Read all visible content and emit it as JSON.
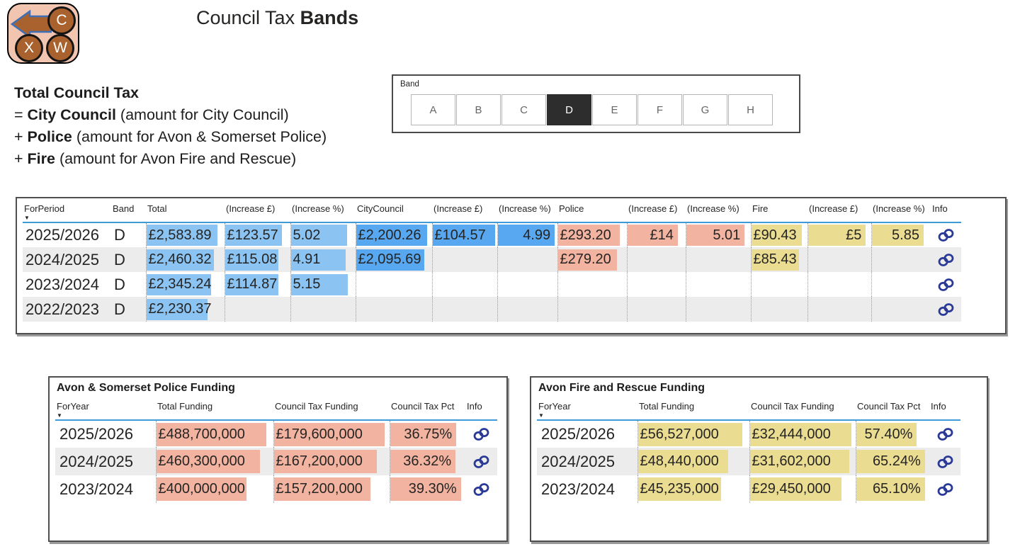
{
  "header": {
    "title_regular": "Council Tax ",
    "title_bold": "Bands",
    "nav_circles": [
      "C",
      "X",
      "W"
    ]
  },
  "formula": {
    "title": "Total Council Tax",
    "lines": [
      {
        "prefix": "= ",
        "bold": "City Council",
        "rest": " (amount for City Council)"
      },
      {
        "prefix": "+ ",
        "bold": "Police",
        "rest": " (amount for Avon & Somerset Police)"
      },
      {
        "prefix": "+ ",
        "bold": "Fire",
        "rest": " (amount for Avon Fire and Rescue)"
      }
    ]
  },
  "band_slicer": {
    "label": "Band",
    "options": [
      "A",
      "B",
      "C",
      "D",
      "E",
      "F",
      "G",
      "H"
    ],
    "selected": "D"
  },
  "main_table": {
    "headers": [
      "ForPeriod",
      "Band",
      "Total",
      "(Increase £)",
      "(Increase %)",
      "CityCouncil",
      "(Increase £)",
      "(Increase %)",
      "Police",
      "(Increase £)",
      "(Increase %)",
      "Fire",
      "(Increase £)",
      "(Increase %)",
      "Info"
    ],
    "rows": [
      {
        "period": "2025/2026",
        "band": "D",
        "total": {
          "t": "£2,583.89",
          "w": 91,
          "c": "lblue",
          "a": "l"
        },
        "total_inc": {
          "t": "£123.57",
          "w": 88,
          "c": "lblue",
          "a": "l"
        },
        "total_pct": {
          "t": "5.02",
          "w": 87,
          "c": "lblue",
          "a": "l"
        },
        "city": {
          "t": "£2,200.26",
          "w": 94,
          "c": "mblue",
          "a": "l"
        },
        "city_inc": {
          "t": "£104.57",
          "w": 97,
          "c": "mblue",
          "a": "l"
        },
        "city_pct": {
          "t": "4.99",
          "w": 96,
          "c": "mblue",
          "a": "r"
        },
        "police": {
          "t": "£293.20",
          "w": 90,
          "c": "salmon",
          "a": "l"
        },
        "police_inc": {
          "t": "£14",
          "w": 87,
          "c": "salmon",
          "a": "r"
        },
        "police_pct": {
          "t": "5.01",
          "w": 91,
          "c": "salmon",
          "a": "r"
        },
        "fire": {
          "t": "£90.43",
          "w": 91,
          "c": "khaki",
          "a": "l"
        },
        "fire_inc": {
          "t": "£5",
          "w": 92,
          "c": "khaki",
          "a": "r"
        },
        "fire_pct": {
          "t": "5.85",
          "w": 88,
          "c": "khaki",
          "a": "r"
        }
      },
      {
        "period": "2024/2025",
        "band": "D",
        "total": {
          "t": "£2,460.32",
          "w": 87,
          "c": "lblue",
          "a": "l"
        },
        "total_inc": {
          "t": "£115.08",
          "w": 82,
          "c": "lblue",
          "a": "l"
        },
        "total_pct": {
          "t": "4.91",
          "w": 85,
          "c": "lblue",
          "a": "l"
        },
        "city": {
          "t": "£2,095.69",
          "w": 90,
          "c": "mblue",
          "a": "l"
        },
        "police": {
          "t": "£279.20",
          "w": 86,
          "c": "salmon",
          "a": "l"
        },
        "fire": {
          "t": "£85.43",
          "w": 86,
          "c": "khaki",
          "a": "l"
        }
      },
      {
        "period": "2023/2024",
        "band": "D",
        "total": {
          "t": "£2,345.24",
          "w": 83,
          "c": "lblue",
          "a": "l"
        },
        "total_inc": {
          "t": "£114.87",
          "w": 82,
          "c": "lblue",
          "a": "l"
        },
        "total_pct": {
          "t": "5.15",
          "w": 89,
          "c": "lblue",
          "a": "l"
        }
      },
      {
        "period": "2022/2023",
        "band": "D",
        "total": {
          "t": "£2,230.37",
          "w": 79,
          "c": "lblue",
          "a": "l"
        }
      }
    ]
  },
  "police_funding": {
    "title": "Avon & Somerset Police Funding",
    "headers": [
      "ForYear",
      "Total Funding",
      "Council Tax Funding",
      "Council Tax Pct",
      "Info"
    ],
    "rows": [
      {
        "year": "2025/2026",
        "total": {
          "t": "£488,700,000",
          "w": 94,
          "c": "salmon",
          "a": "l"
        },
        "ct": {
          "t": "£179,600,000",
          "w": 96,
          "c": "salmon",
          "a": "l"
        },
        "pct": {
          "t": "36.75%",
          "w": 88,
          "c": "salmon",
          "a": "r"
        }
      },
      {
        "year": "2024/2025",
        "total": {
          "t": "£460,300,000",
          "w": 89,
          "c": "salmon",
          "a": "l"
        },
        "ct": {
          "t": "£167,200,000",
          "w": 89,
          "c": "salmon",
          "a": "l"
        },
        "pct": {
          "t": "36.32%",
          "w": 87,
          "c": "salmon",
          "a": "r"
        }
      },
      {
        "year": "2023/2024",
        "total": {
          "t": "£400,000,000",
          "w": 77,
          "c": "salmon",
          "a": "l"
        },
        "ct": {
          "t": "£157,200,000",
          "w": 84,
          "c": "salmon",
          "a": "l"
        },
        "pct": {
          "t": "39.30%",
          "w": 94,
          "c": "salmon",
          "a": "r"
        }
      }
    ]
  },
  "fire_funding": {
    "title": "Avon Fire and Rescue Funding",
    "headers": [
      "ForYear",
      "Total Funding",
      "Council Tax Funding",
      "Council Tax Pct",
      "Info"
    ],
    "rows": [
      {
        "year": "2025/2026",
        "total": {
          "t": "£56,527,000",
          "w": 94,
          "c": "khaki",
          "a": "l"
        },
        "ct": {
          "t": "£32,444,000",
          "w": 96,
          "c": "khaki",
          "a": "l"
        },
        "pct": {
          "t": "57.40%",
          "w": 83,
          "c": "khaki",
          "a": "r"
        }
      },
      {
        "year": "2024/2025",
        "total": {
          "t": "£48,440,000",
          "w": 81,
          "c": "khaki",
          "a": "l"
        },
        "ct": {
          "t": "£31,602,000",
          "w": 94,
          "c": "khaki",
          "a": "l"
        },
        "pct": {
          "t": "65.24%",
          "w": 94,
          "c": "khaki",
          "a": "r"
        }
      },
      {
        "year": "2023/2024",
        "total": {
          "t": "£45,235,000",
          "w": 75,
          "c": "khaki",
          "a": "l"
        },
        "ct": {
          "t": "£29,450,000",
          "w": 87,
          "c": "khaki",
          "a": "l"
        },
        "pct": {
          "t": "65.10%",
          "w": 94,
          "c": "khaki",
          "a": "r"
        }
      }
    ]
  },
  "colors": {
    "lblue": "#8BC4F2",
    "mblue": "#57A8F0",
    "salmon": "#F2B4A0",
    "khaki": "#EADC90",
    "selected_band": "#2D2D2D",
    "header_line": "#3F9BD8",
    "link_icon": "#2B3A97",
    "nav_fill": "#A9622E",
    "nav_bg": "#F2C5B1"
  }
}
